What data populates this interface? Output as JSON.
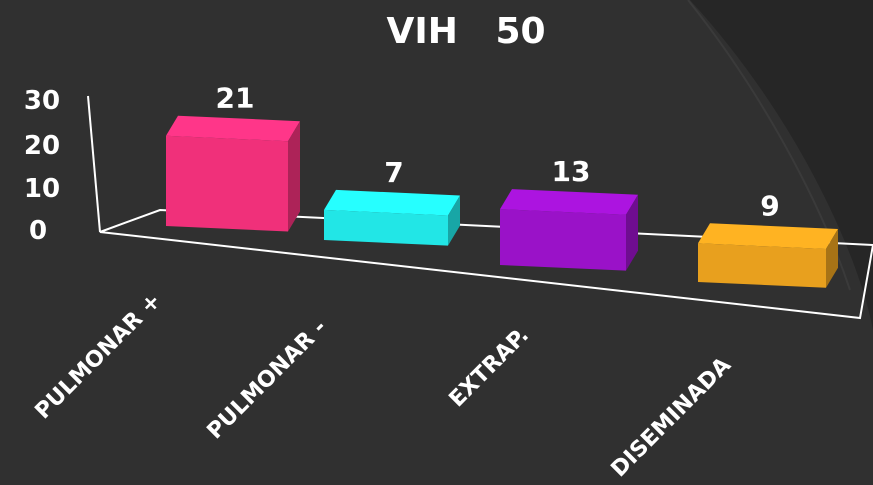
{
  "chart_data": {
    "type": "bar",
    "title": "VIH   50",
    "categories": [
      "PULMONAR +",
      "PULMONAR -",
      "EXTRAP.",
      "DISEMINADA"
    ],
    "values": [
      21,
      7,
      13,
      9
    ],
    "ylim": [
      0,
      30
    ],
    "yticks": [
      0,
      10,
      20,
      30
    ],
    "colors": [
      "#f0307a",
      "#22e6e6",
      "#9a12c8",
      "#e8a01e"
    ],
    "grid": false,
    "legend": "none"
  },
  "colors": {
    "background": "#303030",
    "axis": "#ffffff",
    "text": "#ffffff",
    "arc": "#262626"
  }
}
